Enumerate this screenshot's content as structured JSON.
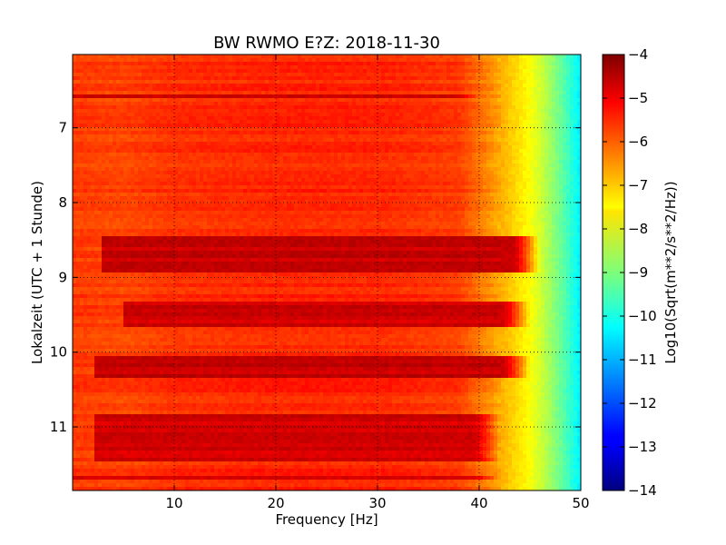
{
  "chart_data": {
    "type": "heatmap",
    "title": "BW RWMO E?Z: 2018-11-30",
    "xlabel": "Frequency [Hz]",
    "ylabel": "Lokalzeit (UTC + 1 Stunde)",
    "xlim": [
      0,
      50
    ],
    "ylim": [
      6.02,
      11.85
    ],
    "y_inverted": true,
    "x_ticks": [
      10,
      20,
      30,
      40,
      50
    ],
    "x_tick_labels": [
      "10",
      "20",
      "30",
      "40",
      "50"
    ],
    "y_ticks": [
      7,
      8,
      9,
      10,
      11
    ],
    "y_tick_labels": [
      "7",
      "8",
      "9",
      "10",
      "11"
    ],
    "grid": true,
    "colormap": "jet",
    "colorbar": {
      "label": "Log10(Sqrt(m**2/s**2/Hz))",
      "range": [
        -14,
        -4
      ],
      "ticks": [
        -4,
        -5,
        -6,
        -7,
        -8,
        -9,
        -10,
        -11,
        -12,
        -13,
        -14
      ],
      "tick_labels": [
        "−4",
        "−5",
        "−6",
        "−7",
        "−8",
        "−9",
        "−10",
        "−11",
        "−12",
        "−13",
        "−14"
      ]
    },
    "frequency_profile": {
      "frequency_hz": [
        0,
        5,
        10,
        20,
        30,
        38,
        41,
        43,
        45,
        46,
        48,
        50
      ],
      "log10_psd": [
        -5.8,
        -5.9,
        -5.7,
        -5.6,
        -5.6,
        -5.8,
        -6.6,
        -7.2,
        -7.8,
        -8.2,
        -9.2,
        -10.4
      ]
    },
    "high_energy_bands": [
      {
        "time_start": 6.55,
        "time_end": 6.62,
        "freq_start": 0,
        "freq_end": 40,
        "log10_psd": -4.9
      },
      {
        "time_start": 8.45,
        "time_end": 8.95,
        "freq_start": 3,
        "freq_end": 46,
        "log10_psd": -4.7
      },
      {
        "time_start": 9.3,
        "time_end": 9.65,
        "freq_start": 5,
        "freq_end": 45,
        "log10_psd": -4.8
      },
      {
        "time_start": 10.05,
        "time_end": 10.35,
        "freq_start": 2,
        "freq_end": 45,
        "log10_psd": -4.7
      },
      {
        "time_start": 10.85,
        "time_end": 11.45,
        "freq_start": 2,
        "freq_end": 42,
        "log10_psd": -4.8
      },
      {
        "time_start": 11.65,
        "time_end": 11.72,
        "freq_start": 0,
        "freq_end": 42,
        "log10_psd": -4.9
      }
    ]
  }
}
